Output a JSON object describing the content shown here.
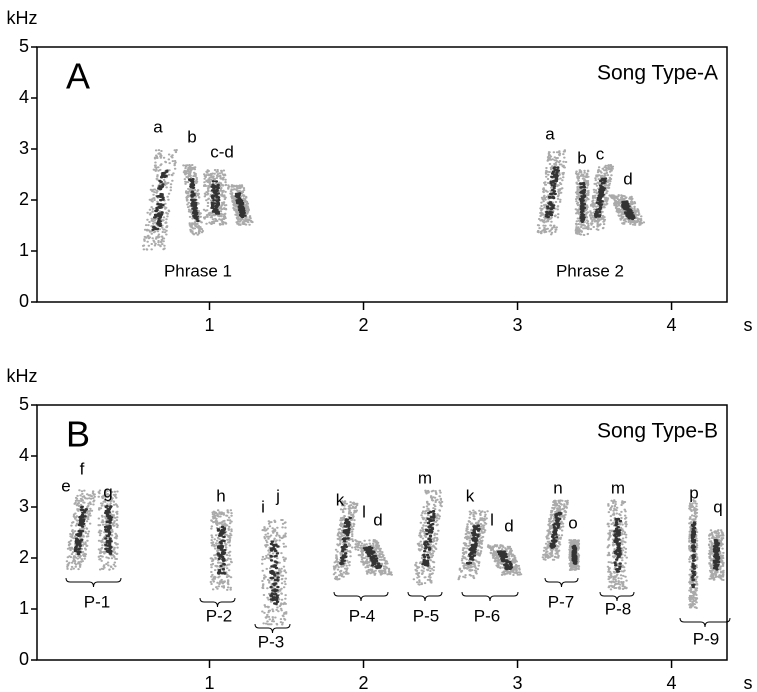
{
  "chart_data": [
    {
      "type": "spectrogram",
      "panel_label": "A",
      "title": "Song Type-A",
      "ylabel": "kHz",
      "xlabel": "s",
      "xlim": [
        -0.12,
        4.36
      ],
      "ylim": [
        0,
        5
      ],
      "xticks": [
        1,
        2,
        3,
        4
      ],
      "yticks": [
        0,
        1,
        2,
        3,
        4,
        5
      ],
      "annotations": [
        "a",
        "b",
        "c-d",
        "a",
        "b",
        "c",
        "d",
        "Phrase 1",
        "Phrase 2"
      ]
    },
    {
      "type": "spectrogram",
      "panel_label": "B",
      "title": "Song Type-B",
      "ylabel": "kHz",
      "xlabel": "s",
      "xlim": [
        -0.12,
        4.36
      ],
      "ylim": [
        0,
        5
      ],
      "xticks": [
        1,
        2,
        3,
        4
      ],
      "yticks": [
        0,
        1,
        2,
        3,
        4,
        5
      ],
      "annotations": [
        "e",
        "f",
        "g",
        "h",
        "i",
        "j",
        "k",
        "l",
        "d",
        "m",
        "k",
        "l",
        "d",
        "n",
        "o",
        "m",
        "p",
        "q",
        "P-1",
        "P-2",
        "P-3",
        "P-4",
        "P-5",
        "P-6",
        "P-7",
        "P-8",
        "P-9"
      ]
    }
  ]
}
